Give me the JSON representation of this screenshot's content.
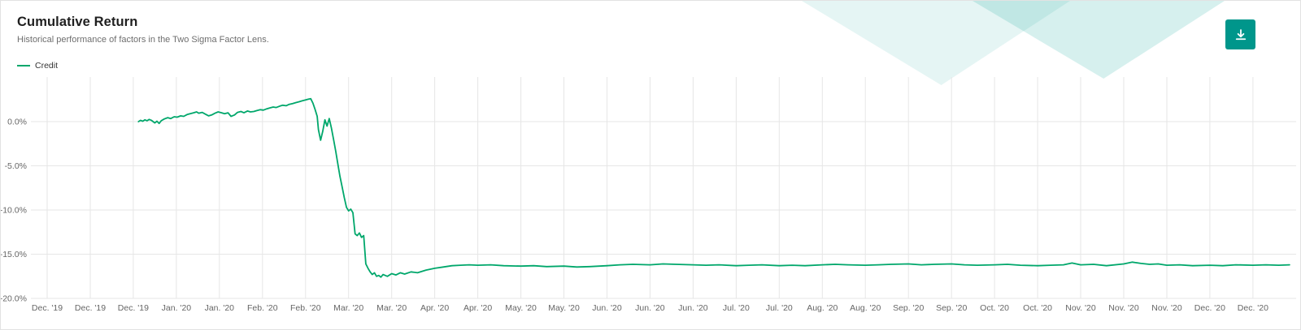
{
  "header": {
    "title": "Cumulative Return",
    "subtitle": "Historical performance of factors in the Two Sigma Factor Lens."
  },
  "toolbar": {
    "download_icon": "download-icon"
  },
  "legend": [
    {
      "label": "Credit",
      "color": "#00A76B"
    }
  ],
  "colors": {
    "accent_teal": "#00968B",
    "line_green": "#00A76B",
    "grid": "#E6E6E6",
    "axis_text": "#666666"
  },
  "chart_data": {
    "type": "line",
    "title": "Cumulative Return",
    "xlabel": "",
    "ylabel": "",
    "ylim": [
      -20,
      5
    ],
    "grid": true,
    "legend_position": "top-left",
    "yticks": [
      0,
      -5,
      -10,
      -15,
      -20
    ],
    "ytick_labels": [
      "0.0%",
      "-5.0%",
      "-10.0%",
      "-15.0%",
      "-20.0%"
    ],
    "xtick_labels": [
      "Dec. '19",
      "Dec. '19",
      "Dec. '19",
      "Jan. '20",
      "Jan. '20",
      "Feb. '20",
      "Feb. '20",
      "Mar. '20",
      "Mar. '20",
      "Apr. '20",
      "Apr. '20",
      "May. '20",
      "May. '20",
      "Jun. '20",
      "Jun. '20",
      "Jun. '20",
      "Jul. '20",
      "Jul. '20",
      "Aug. '20",
      "Aug. '20",
      "Sep. '20",
      "Sep. '20",
      "Oct. '20",
      "Oct. '20",
      "Nov. '20",
      "Nov. '20",
      "Nov. '20",
      "Dec. '20",
      "Dec. '20"
    ],
    "x_unit": "tick-index",
    "series": [
      {
        "name": "Credit",
        "color": "#00A76B",
        "points": [
          [
            2.12,
            0.0
          ],
          [
            2.17,
            0.15
          ],
          [
            2.22,
            0.05
          ],
          [
            2.27,
            0.2
          ],
          [
            2.32,
            0.1
          ],
          [
            2.37,
            0.25
          ],
          [
            2.42,
            0.15
          ],
          [
            2.5,
            -0.15
          ],
          [
            2.55,
            0.05
          ],
          [
            2.6,
            -0.2
          ],
          [
            2.65,
            0.1
          ],
          [
            2.72,
            0.3
          ],
          [
            2.8,
            0.45
          ],
          [
            2.87,
            0.35
          ],
          [
            2.95,
            0.55
          ],
          [
            3.02,
            0.5
          ],
          [
            3.1,
            0.65
          ],
          [
            3.17,
            0.6
          ],
          [
            3.25,
            0.8
          ],
          [
            3.32,
            0.9
          ],
          [
            3.4,
            1.0
          ],
          [
            3.47,
            1.1
          ],
          [
            3.52,
            0.95
          ],
          [
            3.6,
            1.05
          ],
          [
            3.67,
            0.85
          ],
          [
            3.75,
            0.65
          ],
          [
            3.82,
            0.75
          ],
          [
            3.9,
            0.95
          ],
          [
            3.97,
            1.1
          ],
          [
            4.05,
            1.0
          ],
          [
            4.12,
            0.9
          ],
          [
            4.2,
            1.0
          ],
          [
            4.27,
            0.6
          ],
          [
            4.35,
            0.75
          ],
          [
            4.42,
            1.05
          ],
          [
            4.5,
            1.15
          ],
          [
            4.57,
            1.0
          ],
          [
            4.65,
            1.2
          ],
          [
            4.72,
            1.1
          ],
          [
            4.8,
            1.15
          ],
          [
            4.87,
            1.25
          ],
          [
            4.95,
            1.35
          ],
          [
            5.02,
            1.3
          ],
          [
            5.1,
            1.45
          ],
          [
            5.17,
            1.55
          ],
          [
            5.25,
            1.65
          ],
          [
            5.32,
            1.6
          ],
          [
            5.4,
            1.75
          ],
          [
            5.47,
            1.85
          ],
          [
            5.55,
            1.8
          ],
          [
            5.62,
            1.95
          ],
          [
            5.7,
            2.05
          ],
          [
            5.77,
            2.15
          ],
          [
            5.85,
            2.25
          ],
          [
            5.92,
            2.35
          ],
          [
            6.0,
            2.45
          ],
          [
            6.07,
            2.55
          ],
          [
            6.12,
            2.6
          ],
          [
            6.17,
            2.1
          ],
          [
            6.22,
            1.4
          ],
          [
            6.27,
            0.6
          ],
          [
            6.3,
            -0.9
          ],
          [
            6.35,
            -2.1
          ],
          [
            6.4,
            -1.1
          ],
          [
            6.45,
            0.2
          ],
          [
            6.5,
            -0.5
          ],
          [
            6.55,
            0.35
          ],
          [
            6.6,
            -0.7
          ],
          [
            6.65,
            -2.0
          ],
          [
            6.7,
            -3.3
          ],
          [
            6.75,
            -4.8
          ],
          [
            6.8,
            -6.2
          ],
          [
            6.85,
            -7.4
          ],
          [
            6.9,
            -8.6
          ],
          [
            6.95,
            -9.7
          ],
          [
            7.0,
            -10.1
          ],
          [
            7.05,
            -9.9
          ],
          [
            7.1,
            -10.3
          ],
          [
            7.15,
            -12.7
          ],
          [
            7.2,
            -12.9
          ],
          [
            7.25,
            -12.6
          ],
          [
            7.3,
            -13.1
          ],
          [
            7.35,
            -12.9
          ],
          [
            7.4,
            -16.1
          ],
          [
            7.45,
            -16.6
          ],
          [
            7.5,
            -17.0
          ],
          [
            7.55,
            -17.3
          ],
          [
            7.6,
            -17.1
          ],
          [
            7.65,
            -17.5
          ],
          [
            7.7,
            -17.4
          ],
          [
            7.75,
            -17.6
          ],
          [
            7.8,
            -17.3
          ],
          [
            7.9,
            -17.5
          ],
          [
            8.0,
            -17.2
          ],
          [
            8.1,
            -17.35
          ],
          [
            8.2,
            -17.1
          ],
          [
            8.3,
            -17.25
          ],
          [
            8.45,
            -17.0
          ],
          [
            8.6,
            -17.1
          ],
          [
            8.8,
            -16.8
          ],
          [
            9.0,
            -16.6
          ],
          [
            9.2,
            -16.45
          ],
          [
            9.4,
            -16.3
          ],
          [
            9.6,
            -16.25
          ],
          [
            9.8,
            -16.2
          ],
          [
            10.0,
            -16.25
          ],
          [
            10.3,
            -16.2
          ],
          [
            10.6,
            -16.3
          ],
          [
            11.0,
            -16.35
          ],
          [
            11.3,
            -16.3
          ],
          [
            11.6,
            -16.4
          ],
          [
            12.0,
            -16.35
          ],
          [
            12.3,
            -16.45
          ],
          [
            12.6,
            -16.4
          ],
          [
            13.0,
            -16.3
          ],
          [
            13.3,
            -16.2
          ],
          [
            13.6,
            -16.15
          ],
          [
            14.0,
            -16.2
          ],
          [
            14.3,
            -16.1
          ],
          [
            14.6,
            -16.15
          ],
          [
            15.0,
            -16.2
          ],
          [
            15.3,
            -16.25
          ],
          [
            15.6,
            -16.2
          ],
          [
            16.0,
            -16.3
          ],
          [
            16.3,
            -16.25
          ],
          [
            16.6,
            -16.2
          ],
          [
            17.0,
            -16.3
          ],
          [
            17.3,
            -16.25
          ],
          [
            17.6,
            -16.3
          ],
          [
            18.0,
            -16.2
          ],
          [
            18.3,
            -16.15
          ],
          [
            18.6,
            -16.2
          ],
          [
            19.0,
            -16.25
          ],
          [
            19.3,
            -16.2
          ],
          [
            19.6,
            -16.15
          ],
          [
            20.0,
            -16.1
          ],
          [
            20.3,
            -16.2
          ],
          [
            20.6,
            -16.15
          ],
          [
            21.0,
            -16.1
          ],
          [
            21.3,
            -16.2
          ],
          [
            21.6,
            -16.25
          ],
          [
            22.0,
            -16.2
          ],
          [
            22.3,
            -16.15
          ],
          [
            22.6,
            -16.25
          ],
          [
            23.0,
            -16.3
          ],
          [
            23.3,
            -16.25
          ],
          [
            23.6,
            -16.2
          ],
          [
            23.8,
            -16.0
          ],
          [
            24.0,
            -16.2
          ],
          [
            24.3,
            -16.15
          ],
          [
            24.6,
            -16.3
          ],
          [
            25.0,
            -16.1
          ],
          [
            25.2,
            -15.9
          ],
          [
            25.4,
            -16.05
          ],
          [
            25.6,
            -16.15
          ],
          [
            25.8,
            -16.1
          ],
          [
            26.0,
            -16.25
          ],
          [
            26.3,
            -16.2
          ],
          [
            26.6,
            -16.3
          ],
          [
            27.0,
            -16.25
          ],
          [
            27.3,
            -16.3
          ],
          [
            27.6,
            -16.2
          ],
          [
            28.0,
            -16.25
          ],
          [
            28.3,
            -16.2
          ],
          [
            28.6,
            -16.25
          ],
          [
            28.85,
            -16.2
          ]
        ]
      }
    ]
  }
}
